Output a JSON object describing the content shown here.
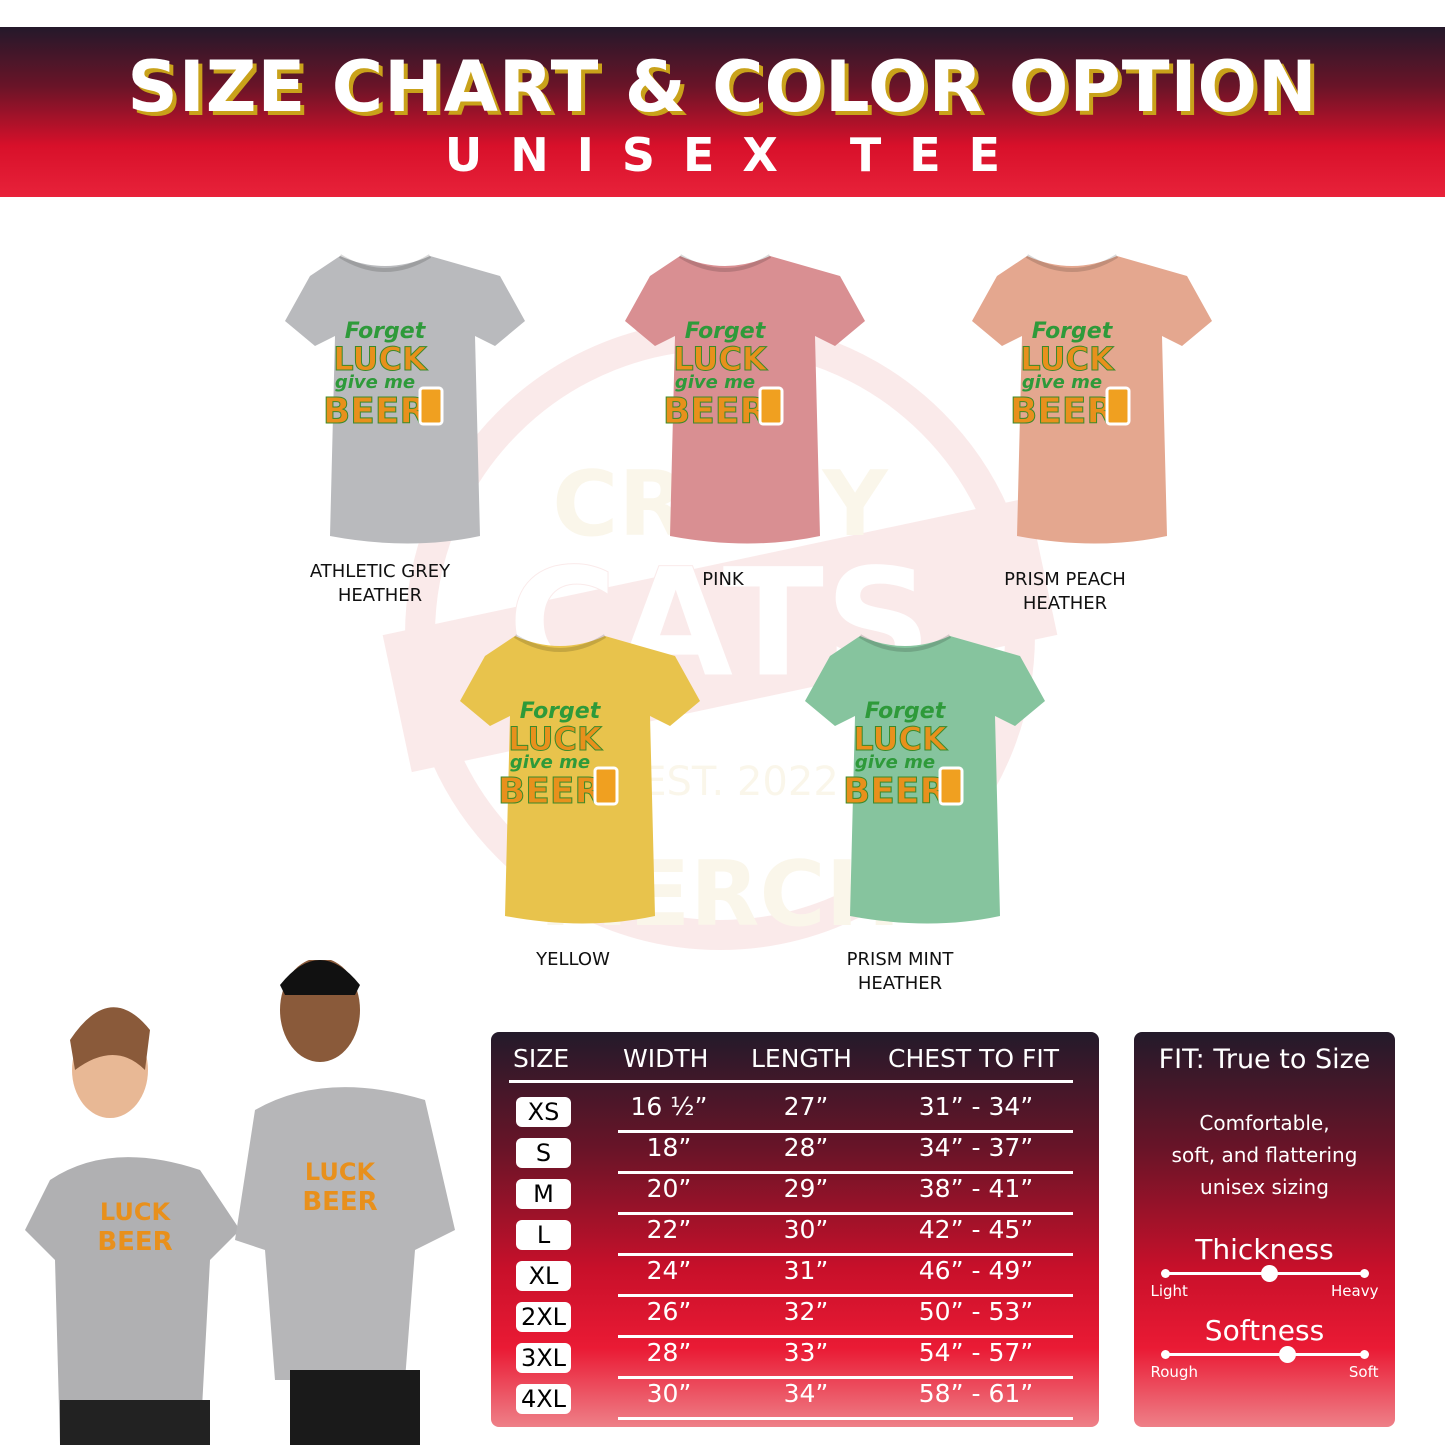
{
  "header": {
    "title": "SIZE CHART & COLOR OPTION",
    "subtitle": "UNISEX TEE"
  },
  "watermark": {
    "lines": [
      "CRAZY",
      "CATS",
      "EST. 2022",
      "MERCH"
    ]
  },
  "design": {
    "lines": [
      "Forget",
      "LUCK",
      "give me",
      "BEER"
    ]
  },
  "colors": [
    {
      "label": [
        "ATHLETIC GREY",
        "HEATHER"
      ],
      "hex": "#b9babd"
    },
    {
      "label": [
        "PINK",
        ""
      ],
      "hex": "#d98f92"
    },
    {
      "label": [
        "PRISM PEACH",
        "HEATHER"
      ],
      "hex": "#e4a78f"
    },
    {
      "label": [
        "YELLOW",
        ""
      ],
      "hex": "#e8c34c"
    },
    {
      "label": [
        "PRISM MINT",
        "HEATHER"
      ],
      "hex": "#86c49e"
    }
  ],
  "size_chart": {
    "headers": [
      "SIZE",
      "WIDTH",
      "LENGTH",
      "CHEST TO FIT"
    ],
    "rows": [
      {
        "size": "XS",
        "width": "16 ½”",
        "length": "27”",
        "chest": "31” - 34”"
      },
      {
        "size": "S",
        "width": "18”",
        "length": "28”",
        "chest": "34” - 37”"
      },
      {
        "size": "M",
        "width": "20”",
        "length": "29”",
        "chest": "38” - 41”"
      },
      {
        "size": "L",
        "width": "22”",
        "length": "30”",
        "chest": "42” - 45”"
      },
      {
        "size": "XL",
        "width": "24”",
        "length": "31”",
        "chest": "46” - 49”"
      },
      {
        "size": "2XL",
        "width": "26”",
        "length": "32”",
        "chest": "50” - 53”"
      },
      {
        "size": "3XL",
        "width": "28”",
        "length": "33”",
        "chest": "54” - 57”"
      },
      {
        "size": "4XL",
        "width": "30”",
        "length": "34”",
        "chest": "58” - 61”"
      }
    ]
  },
  "fit": {
    "title": "FIT: True to Size",
    "description": [
      "Comfortable,",
      "soft, and flattering",
      "unisex sizing"
    ],
    "thickness": {
      "title": "Thickness",
      "min": "Light",
      "max": "Heavy",
      "value_percent": 52
    },
    "softness": {
      "title": "Softness",
      "min": "Rough",
      "max": "Soft",
      "value_percent": 61
    }
  },
  "accent": {
    "dark": "#231a2a",
    "red": "#e8102a",
    "gold": "#c9a21a"
  }
}
